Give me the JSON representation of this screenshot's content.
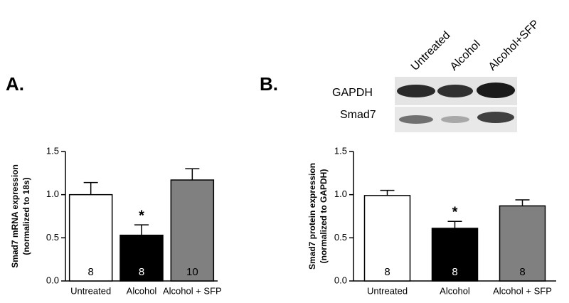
{
  "chart_data": [
    {
      "type": "bar",
      "panel": "A.",
      "ylabel": [
        "Smad7 mRNA expression",
        "(normalized to 18s)"
      ],
      "categories": [
        "Untreated",
        "Alcohol",
        "Alcohol + SFP"
      ],
      "values": [
        1.0,
        0.53,
        1.17
      ],
      "errors": [
        0.14,
        0.12,
        0.13
      ],
      "colors": [
        "#ffffff",
        "#000000",
        "#808080"
      ],
      "n": [
        8,
        8,
        10
      ],
      "significance": [
        null,
        "*",
        null
      ],
      "ylim": [
        0,
        1.5
      ],
      "yticks": [
        {
          "value": 0,
          "label": "0.0"
        },
        {
          "value": 0.5,
          "label": "0.5"
        },
        {
          "value": 1,
          "label": "1.0"
        },
        {
          "value": 1.5,
          "label": "1.5"
        }
      ]
    },
    {
      "type": "bar",
      "panel": "B.",
      "ylabel": [
        "Smad7 protein expression",
        "(normalized to GAPDH)"
      ],
      "categories": [
        "Untreated",
        "Alcohol",
        "Alcohol + SFP"
      ],
      "values": [
        0.99,
        0.61,
        0.87
      ],
      "errors": [
        0.06,
        0.08,
        0.07
      ],
      "colors": [
        "#ffffff",
        "#000000",
        "#808080"
      ],
      "n": [
        8,
        8,
        8
      ],
      "significance": [
        null,
        "*",
        null
      ],
      "ylim": [
        0,
        1.5
      ],
      "yticks": [
        {
          "value": 0,
          "label": "0.0"
        },
        {
          "value": 0.5,
          "label": "0.5"
        },
        {
          "value": 1,
          "label": "1.0"
        },
        {
          "value": 1.5,
          "label": "1.5"
        }
      ]
    }
  ],
  "blot": {
    "lanes": [
      "Untreated",
      "Alcohol",
      "Alcohol+SFP"
    ],
    "rows": [
      "GAPDH",
      "Smad7"
    ]
  }
}
